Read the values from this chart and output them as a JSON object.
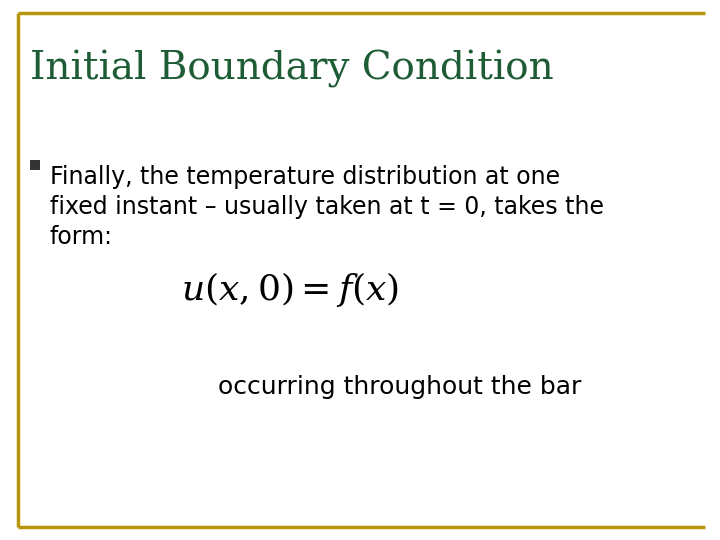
{
  "title": "Initial Boundary Condition",
  "title_color": "#1E5C35",
  "title_fontsize": 28,
  "background_color": "#FFFFFF",
  "border_color": "#B8960C",
  "bullet_color": "#2F2F2F",
  "bullet_fontsize": 17,
  "formula_fontsize": 26,
  "subtext": "occurring throughout the bar",
  "subtext_fontsize": 18,
  "bullet_lines": [
    "Finally, the temperature distribution at one",
    "fixed instant – usually taken at t = 0, takes the",
    "form:"
  ]
}
